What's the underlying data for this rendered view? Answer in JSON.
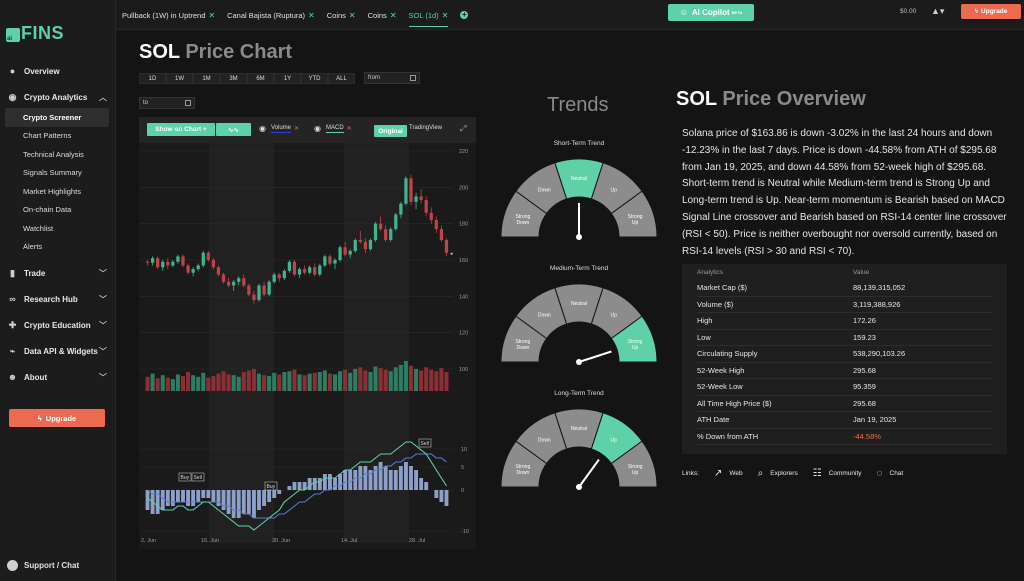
{
  "brand": {
    "logo_badge": "ai",
    "logo_text": "FINS"
  },
  "sidebar": {
    "items": [
      {
        "label": "Overview",
        "icon": "overview-icon"
      },
      {
        "label": "Crypto Analytics",
        "icon": "crypto-icon"
      },
      {
        "label": "Trade",
        "icon": "trade-icon"
      },
      {
        "label": "Research Hub",
        "icon": "binoculars-icon"
      },
      {
        "label": "Crypto Education",
        "icon": "puzzle-icon"
      },
      {
        "label": "Data API & Widgets",
        "icon": "api-icon"
      },
      {
        "label": "About",
        "icon": "about-icon"
      }
    ],
    "subitems": [
      "Crypto Screener",
      "Chart Patterns",
      "Technical Analysis",
      "Signals Summary",
      "Market Highlights",
      "On-chain Data",
      "Watchlist",
      "Alerts"
    ],
    "upgrade": "Upgrade",
    "support": "Support / Chat"
  },
  "topbar": {
    "tabs": [
      "Pullback (1W) in Uptrend",
      "Canal Bajista (Ruptura)",
      "Coins",
      "Coins",
      "SOL (1d)"
    ],
    "copilot": "AI Copilot",
    "copilot_badge": "BETA",
    "balance": "$0.00",
    "upgrade": "Upgrade"
  },
  "price_chart": {
    "title_bold": "SOL",
    "title_rest": "Price Chart",
    "ranges": [
      "1D",
      "1W",
      "1M",
      "3M",
      "6M",
      "1Y",
      "YTD",
      "ALL"
    ],
    "from_placeholder": "from",
    "to_placeholder": "to",
    "show_on_chart": "Show on Chart +",
    "volume": "Volume",
    "macd": "MACD",
    "original": "Original",
    "tradingview": "TradingView"
  },
  "chart_data": {
    "type": "candlestick",
    "price_axis": {
      "ticks": [
        220,
        200,
        180,
        160,
        140,
        120,
        100
      ],
      "ylim": [
        100,
        220
      ]
    },
    "macd_axis": {
      "ticks": [
        10,
        5,
        0,
        -10
      ]
    },
    "x_ticks": [
      "2. Jun",
      "16. Jun",
      "30. Jun",
      "14. Jul",
      "28. Jul"
    ],
    "last_price": 163.86,
    "markers": [
      "Buy",
      "Sell",
      "Buy",
      "Sell"
    ],
    "candles": [
      [
        159,
        160,
        157,
        158.5
      ],
      [
        158.5,
        162,
        157,
        161
      ],
      [
        161,
        162,
        155,
        156
      ],
      [
        156,
        160,
        154,
        159
      ],
      [
        159,
        161,
        155,
        157
      ],
      [
        157,
        160,
        156,
        159
      ],
      [
        159,
        163,
        158,
        162
      ],
      [
        162,
        163,
        156,
        157
      ],
      [
        157,
        158,
        152,
        153
      ],
      [
        153,
        156,
        151,
        155
      ],
      [
        155,
        158,
        154,
        157
      ],
      [
        157,
        165,
        156,
        164
      ],
      [
        164,
        165,
        159,
        160
      ],
      [
        160,
        161,
        155,
        156
      ],
      [
        156,
        157,
        151,
        152
      ],
      [
        152,
        153,
        147,
        148
      ],
      [
        148,
        150,
        145,
        146
      ],
      [
        146,
        149,
        143,
        148
      ],
      [
        148,
        151,
        146,
        150
      ],
      [
        150,
        152,
        145,
        146
      ],
      [
        146,
        147,
        140,
        141
      ],
      [
        141,
        143,
        136,
        138
      ],
      [
        138,
        147,
        137,
        146
      ],
      [
        146,
        148,
        140,
        141
      ],
      [
        141,
        149,
        140,
        148
      ],
      [
        148,
        153,
        147,
        152
      ],
      [
        152,
        153,
        148,
        150
      ],
      [
        150,
        155,
        149,
        154
      ],
      [
        154,
        160,
        153,
        159
      ],
      [
        159,
        160,
        151,
        152
      ],
      [
        152,
        156,
        150,
        155
      ],
      [
        155,
        157,
        152,
        153
      ],
      [
        153,
        157,
        152,
        156
      ],
      [
        156,
        158,
        151,
        152
      ],
      [
        152,
        158,
        151,
        157
      ],
      [
        157,
        163,
        156,
        162
      ],
      [
        162,
        163,
        157,
        158
      ],
      [
        158,
        161,
        155,
        160
      ],
      [
        160,
        168,
        159,
        167
      ],
      [
        167,
        170,
        162,
        163
      ],
      [
        163,
        166,
        161,
        165
      ],
      [
        165,
        172,
        164,
        171
      ],
      [
        171,
        176,
        169,
        170
      ],
      [
        170,
        172,
        164,
        166
      ],
      [
        166,
        172,
        165,
        171
      ],
      [
        171,
        181,
        170,
        180
      ],
      [
        180,
        184,
        176,
        177
      ],
      [
        177,
        179,
        170,
        171
      ],
      [
        171,
        178,
        170,
        177
      ],
      [
        177,
        186,
        176,
        185
      ],
      [
        185,
        192,
        183,
        191
      ],
      [
        191,
        206,
        190,
        205
      ],
      [
        205,
        207,
        190,
        192
      ],
      [
        192,
        197,
        188,
        195
      ],
      [
        195,
        199,
        191,
        193
      ],
      [
        193,
        195,
        184,
        186
      ],
      [
        186,
        189,
        180,
        182
      ],
      [
        182,
        184,
        175,
        177
      ],
      [
        177,
        179,
        170,
        171
      ],
      [
        171,
        172,
        162,
        164
      ]
    ],
    "volume": [
      18,
      22,
      16,
      20,
      17,
      15,
      21,
      19,
      24,
      20,
      18,
      23,
      17,
      19,
      22,
      25,
      21,
      20,
      18,
      24,
      26,
      28,
      22,
      20,
      19,
      23,
      21,
      24,
      25,
      27,
      21,
      20,
      22,
      23,
      24,
      26,
      22,
      21,
      25,
      27,
      23,
      28,
      30,
      26,
      24,
      31,
      29,
      27,
      25,
      30,
      33,
      38,
      32,
      28,
      26,
      30,
      27,
      25,
      29,
      24
    ],
    "macd_hist": [
      -5,
      -6,
      -6,
      -5,
      -4,
      -4,
      -3,
      -3,
      -4,
      -4,
      -3,
      -2,
      -2,
      -3,
      -4,
      -5,
      -6,
      -7,
      -7,
      -6,
      -6,
      -7,
      -5,
      -4,
      -3,
      -2,
      -1,
      0,
      1,
      2,
      2,
      2,
      3,
      3,
      3,
      4,
      4,
      3,
      4,
      5,
      5,
      5,
      6,
      6,
      5,
      6,
      7,
      6,
      5,
      5,
      6,
      7,
      6,
      5,
      3,
      2,
      0,
      -2,
      -3,
      -4
    ],
    "macd_line": [
      -2,
      -3,
      -4,
      -5,
      -5,
      -5,
      -4,
      -4,
      -5,
      -5,
      -4,
      -3,
      -3,
      -4,
      -5,
      -6,
      -7,
      -8,
      -9,
      -9,
      -9,
      -10,
      -9,
      -8,
      -7,
      -6,
      -5,
      -3,
      -2,
      -1,
      0,
      0,
      1,
      2,
      2,
      3,
      3,
      3,
      4,
      5,
      5,
      6,
      7,
      7,
      7,
      8,
      9,
      9,
      9,
      10,
      11,
      12,
      12,
      11,
      10,
      9,
      7,
      5,
      3,
      1
    ],
    "signal_line": [
      0,
      -1,
      -1,
      -2,
      -3,
      -3,
      -3,
      -3,
      -3,
      -3,
      -3,
      -3,
      -3,
      -3,
      -3,
      -4,
      -4,
      -5,
      -5,
      -6,
      -6,
      -7,
      -7,
      -7,
      -7,
      -7,
      -6,
      -6,
      -5,
      -4,
      -3,
      -3,
      -2,
      -1,
      -1,
      0,
      0,
      1,
      1,
      2,
      2,
      3,
      3,
      4,
      4,
      5,
      5,
      6,
      6,
      7,
      7,
      8,
      8,
      9,
      9,
      9,
      9,
      8,
      8,
      7
    ]
  },
  "trends": {
    "title": "Trends",
    "segment_labels": [
      "Strong Down",
      "Down",
      "Neutral",
      "Up",
      "Strong Up"
    ],
    "gauges": [
      {
        "title": "Short-Term Trend",
        "value": "Neutral"
      },
      {
        "title": "Medium-Term Trend",
        "value": "Strong Up"
      },
      {
        "title": "Long-Term Trend",
        "value": "Up"
      }
    ]
  },
  "overview": {
    "title_bold": "SOL",
    "title_rest": "Price Overview",
    "text": "Solana price of $163.86 is down -3.02% in the last 24 hours and down -12.23% in the last 7 days. Price is down -44.58% from ATH of $295.68 from Jan 19, 2025, and down 44.58% from 52-week high of $295.68. Short-term trend is Neutral while Medium-term trend is Strong Up and Long-term trend is Up. Near-term momentum is Bearish based on MACD Signal Line crossover and Bearish based on RSI-14 center line crossover (RSI < 50). Price is neither overbought nor oversold currently, based on RSI-14 levels (RSI > 30 and RSI < 70).",
    "analytics_header": [
      "Analytics",
      "Value"
    ],
    "analytics": [
      [
        "Market Cap ($)",
        "88,139,315,052"
      ],
      [
        "Volume ($)",
        "3,119,388,926"
      ],
      [
        "High",
        "172.26"
      ],
      [
        "Low",
        "159.23"
      ],
      [
        "Circulating Supply",
        "538,290,103.26"
      ],
      [
        "52-Week High",
        "295.68"
      ],
      [
        "52-Week Low",
        "95.359"
      ],
      [
        "All Time High Price ($)",
        "295.68"
      ],
      [
        "ATH Date",
        "Jan 19, 2025"
      ],
      [
        "% Down from ATH",
        "-44.58%"
      ]
    ],
    "links_label": "Links:",
    "links": [
      "Web",
      "Explorers",
      "Community",
      "Chat"
    ]
  },
  "colors": {
    "accent": "#5fd1a8",
    "up": "#3fb58f",
    "down": "#c0434a",
    "upgrade": "#ec6a52",
    "gauge_gray": "#8c8c8c"
  }
}
